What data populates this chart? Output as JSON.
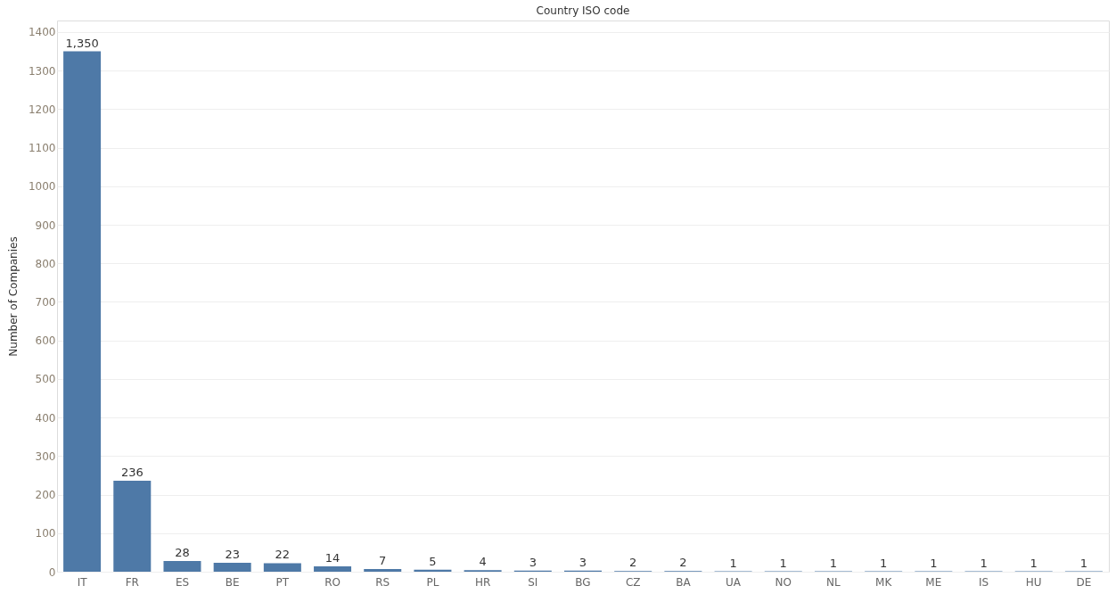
{
  "chart_data": {
    "type": "bar",
    "title": "Country ISO code",
    "ylabel": "Number of Companies",
    "categories": [
      "IT",
      "FR",
      "ES",
      "BE",
      "PT",
      "RO",
      "RS",
      "PL",
      "HR",
      "SI",
      "BG",
      "CZ",
      "BA",
      "UA",
      "NO",
      "NL",
      "MK",
      "ME",
      "IS",
      "HU",
      "DE"
    ],
    "values": [
      1350,
      236,
      28,
      23,
      22,
      14,
      7,
      5,
      4,
      3,
      3,
      2,
      2,
      1,
      1,
      1,
      1,
      1,
      1,
      1,
      1
    ],
    "color": "#4e79a7",
    "ylim": [
      0,
      1430
    ],
    "yticks": [
      0,
      100,
      200,
      300,
      400,
      500,
      600,
      700,
      800,
      900,
      1000,
      1100,
      1200,
      1300,
      1400
    ],
    "value_labels": [
      "1,350",
      "236",
      "28",
      "23",
      "22",
      "14",
      "7",
      "5",
      "4",
      "3",
      "3",
      "2",
      "2",
      "1",
      "1",
      "1",
      "1",
      "1",
      "1",
      "1",
      "1"
    ],
    "grid": "y"
  }
}
